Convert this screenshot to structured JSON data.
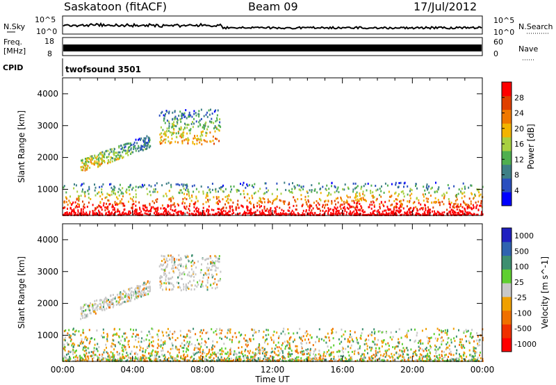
{
  "header": {
    "site": "Saskatoon (fitACF)",
    "beam": "Beam 09",
    "date": "17/Jul/2012"
  },
  "summary_panels": {
    "nsky": {
      "label": "N.Sky",
      "ticks": [
        "10^5",
        "10^0"
      ],
      "right_label": "N.Search",
      "right_ticks": [
        "10^5",
        "10^0"
      ]
    },
    "freq": {
      "label_line1": "Freq.",
      "label_line2": "[MHz]",
      "ticks": [
        "18",
        "8"
      ],
      "right_label": "Nave",
      "right_ticks": [
        "60",
        "0"
      ]
    },
    "cpid": {
      "label": "CPID",
      "value": "twofsound 3501"
    }
  },
  "colors": {
    "power_scale": [
      "#0000ff",
      "#2a4fbf",
      "#3d7f86",
      "#4faf4f",
      "#a8d040",
      "#f2b400",
      "#f07800",
      "#e04000",
      "#ff0000"
    ],
    "velocity_scale": [
      "#2020c0",
      "#2f63b0",
      "#3d8f70",
      "#5fcf30",
      "#c8c8c8",
      "#f0a000",
      "#f07000",
      "#f03000",
      "#ff0000"
    ]
  },
  "chart_data": [
    {
      "type": "heatmap",
      "title": "",
      "xlabel": "Time UT",
      "ylabel": "Slant Range [km]",
      "xlim": [
        "00:00",
        "24:00"
      ],
      "ylim": [
        180,
        4500
      ],
      "x_ticks": [
        "00:00",
        "04:00",
        "08:00",
        "12:00",
        "16:00",
        "20:00",
        "00:00"
      ],
      "y_ticks": [
        1000,
        2000,
        3000,
        4000
      ],
      "colorbar": {
        "label": "Power [dB]",
        "range": [
          0,
          32
        ],
        "ticks": [
          4,
          8,
          12,
          16,
          20,
          24,
          28
        ]
      },
      "features": [
        {
          "description": "near-range scatter",
          "time": [
            "00:00",
            "24:00"
          ],
          "range_km": [
            180,
            1200
          ]
        },
        {
          "description": "scatter arc",
          "time": [
            "01:00",
            "05:00"
          ],
          "range_km": [
            1500,
            2600
          ]
        },
        {
          "description": "scatter patches",
          "time": [
            "05:30",
            "09:00"
          ],
          "range_km": [
            2400,
            3500
          ]
        }
      ]
    },
    {
      "type": "heatmap",
      "title": "",
      "xlabel": "Time UT",
      "ylabel": "Slant Range [km]",
      "xlim": [
        "00:00",
        "24:00"
      ],
      "ylim": [
        180,
        4500
      ],
      "x_ticks": [
        "00:00",
        "04:00",
        "08:00",
        "12:00",
        "16:00",
        "20:00",
        "00:00"
      ],
      "y_ticks": [
        1000,
        2000,
        3000,
        4000
      ],
      "colorbar": {
        "label": "Velocity [m s^-1]",
        "tick_labels": [
          "1000",
          "500",
          "100",
          "25",
          "-25",
          "-100",
          "-500",
          "-1000"
        ]
      },
      "features": [
        {
          "description": "near-range scatter",
          "time": [
            "00:00",
            "24:00"
          ],
          "range_km": [
            180,
            1200
          ]
        },
        {
          "description": "scatter arc",
          "time": [
            "01:00",
            "05:00"
          ],
          "range_km": [
            1500,
            2600
          ]
        },
        {
          "description": "scatter patches",
          "time": [
            "05:30",
            "09:00"
          ],
          "range_km": [
            2400,
            3500
          ]
        }
      ]
    }
  ]
}
